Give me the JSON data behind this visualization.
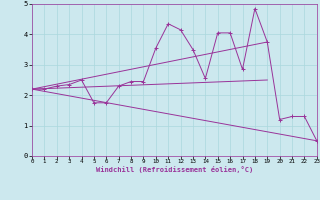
{
  "xlabel": "Windchill (Refroidissement éolien,°C)",
  "background_color": "#cce8ee",
  "line_color": "#993399",
  "xlim": [
    0,
    23
  ],
  "ylim": [
    0,
    5
  ],
  "xticks": [
    0,
    1,
    2,
    3,
    4,
    5,
    6,
    7,
    8,
    9,
    10,
    11,
    12,
    13,
    14,
    15,
    16,
    17,
    18,
    19,
    20,
    21,
    22,
    23
  ],
  "yticks": [
    0,
    1,
    2,
    3,
    4,
    5
  ],
  "grid_color": "#aad8dd",
  "series1_x": [
    0,
    1,
    2,
    3,
    4,
    5,
    6,
    7,
    8,
    9,
    10,
    11,
    12,
    13,
    14,
    15,
    16,
    17,
    18,
    19,
    20,
    21,
    22,
    23
  ],
  "series1_y": [
    2.2,
    2.2,
    2.3,
    2.35,
    2.5,
    1.75,
    1.75,
    2.3,
    2.45,
    2.45,
    3.55,
    4.35,
    4.15,
    3.5,
    2.55,
    4.05,
    4.05,
    2.85,
    4.85,
    3.75,
    1.2,
    1.3,
    1.3,
    0.5
  ],
  "series2_x": [
    0,
    19
  ],
  "series2_y": [
    2.2,
    2.5
  ],
  "series3_x": [
    0,
    23
  ],
  "series3_y": [
    2.2,
    0.5
  ],
  "series4_x": [
    0,
    19
  ],
  "series4_y": [
    2.2,
    3.75
  ]
}
